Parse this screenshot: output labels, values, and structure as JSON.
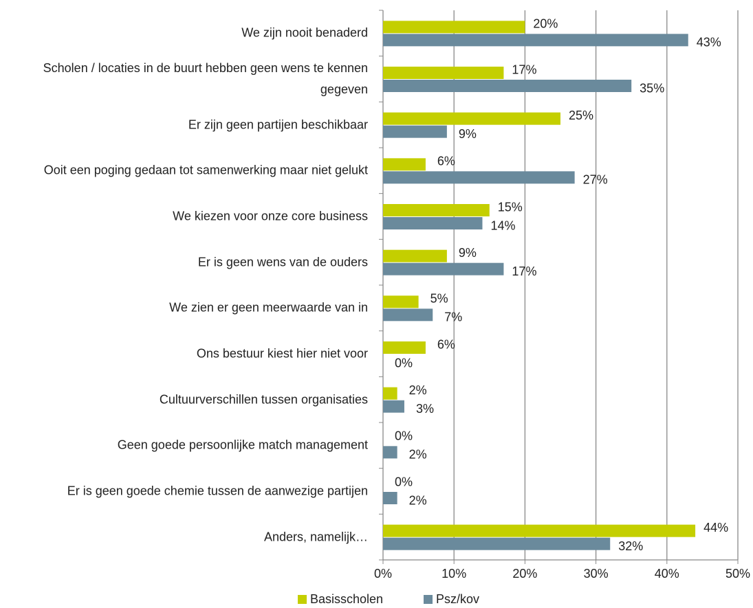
{
  "chart_data": {
    "type": "barh",
    "categories": [
      "We zijn nooit benaderd",
      "Scholen / locaties in de buurt hebben geen wens te kennen gegeven",
      "Er zijn geen partijen beschikbaar",
      "Ooit een poging gedaan tot samenwerking maar niet gelukt",
      "We kiezen voor onze core business",
      "Er is geen wens van de ouders",
      "We zien er geen meerwaarde van in",
      "Ons bestuur kiest hier niet voor",
      "Cultuurverschillen tussen organisaties",
      "Geen goede persoonlijke match management",
      "Er is geen goede chemie tussen de aanwezige partijen",
      "Anders, namelijk…"
    ],
    "series": [
      {
        "name": "Basisscholen",
        "color": "#c4cf00",
        "values": [
          20,
          17,
          25,
          6,
          15,
          9,
          5,
          6,
          2,
          0,
          0,
          44
        ],
        "value_labels": [
          "20%",
          "17%",
          "25%",
          "6%",
          "15%",
          "9%",
          "5%",
          "6%",
          "2%",
          "0%",
          "0%",
          "44%"
        ]
      },
      {
        "name": "Psz/kov",
        "color": "#6a8a9c",
        "values": [
          43,
          35,
          9,
          27,
          14,
          17,
          7,
          0,
          3,
          2,
          2,
          32
        ],
        "value_labels": [
          "43%",
          "35%",
          "9%",
          "27%",
          "14%",
          "17%",
          "7%",
          "0%",
          "3%",
          "2%",
          "2%",
          "32%"
        ]
      }
    ],
    "xlim": [
      0,
      50
    ],
    "xticks": [
      {
        "value": 0,
        "label": "0%"
      },
      {
        "value": 10,
        "label": "10%"
      },
      {
        "value": 20,
        "label": "20%"
      },
      {
        "value": 30,
        "label": "30%"
      },
      {
        "value": 40,
        "label": "40%"
      },
      {
        "value": 50,
        "label": "50%"
      }
    ],
    "grid": true,
    "legend": "bottom"
  }
}
